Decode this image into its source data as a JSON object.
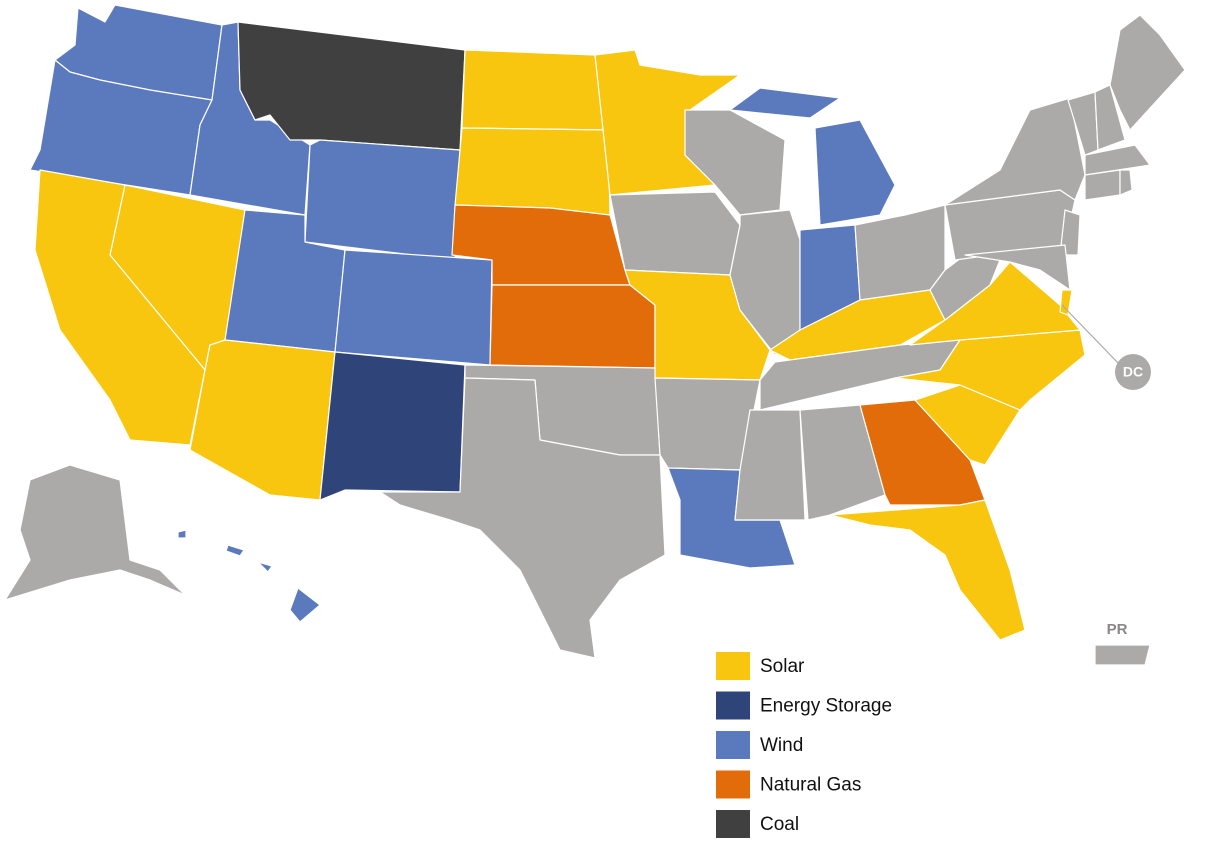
{
  "legend": [
    {
      "label": "Solar",
      "color": "#f8c60e"
    },
    {
      "label": "Energy Storage",
      "color": "#2f4479"
    },
    {
      "label": "Wind",
      "color": "#5b79bd"
    },
    {
      "label": "Natural Gas",
      "color": "#e36c0a"
    },
    {
      "label": "Coal",
      "color": "#404040"
    }
  ],
  "labels": {
    "dc": "DC",
    "pr": "PR"
  }
}
